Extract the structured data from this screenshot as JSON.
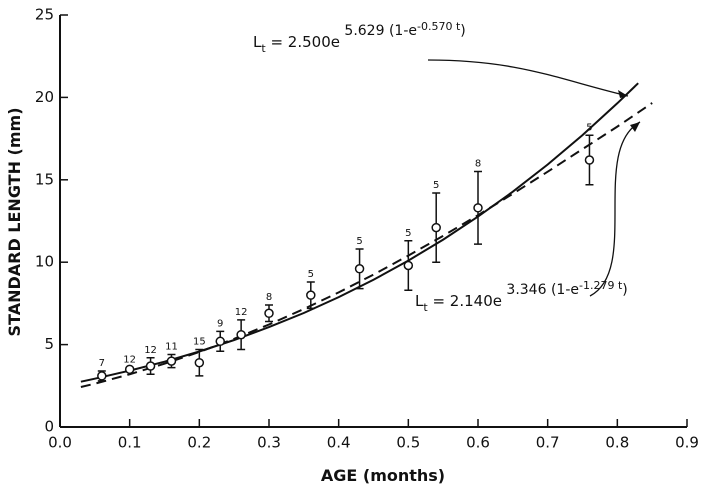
{
  "chart_data": {
    "type": "scatter",
    "x_label": "AGE (months)",
    "y_label": "STANDARD LENGTH (mm)",
    "xlim": [
      0,
      0.9
    ],
    "ylim": [
      0,
      25
    ],
    "xticks": [
      {
        "value": 0,
        "label": "0.0"
      },
      0.1,
      0.2,
      0.3,
      0.4,
      0.5,
      0.6,
      0.7,
      0.8,
      0.9
    ],
    "yticks": [
      0,
      5,
      10,
      15,
      20,
      25
    ],
    "points": {
      "color": "#111",
      "x": [
        0.06,
        0.1,
        0.13,
        0.16,
        0.2,
        0.23,
        0.26,
        0.3,
        0.36,
        0.43,
        0.5,
        0.54,
        0.6,
        0.76
      ],
      "values": [
        3.1,
        3.5,
        3.7,
        4.0,
        3.9,
        5.2,
        5.6,
        6.9,
        8.0,
        9.6,
        9.8,
        12.1,
        13.3,
        16.2
      ],
      "errors": [
        0.3,
        0.1,
        0.5,
        0.4,
        0.8,
        0.6,
        0.9,
        0.5,
        0.8,
        1.2,
        1.5,
        2.1,
        2.2,
        1.5
      ],
      "sample_sizes": [
        7,
        12,
        12,
        11,
        15,
        9,
        12,
        8,
        5,
        5,
        5,
        5,
        8,
        5
      ]
    },
    "series": [
      {
        "style": "solid",
        "color": "#111",
        "x": [
          0.03,
          0.05,
          0.1,
          0.15,
          0.2,
          0.25,
          0.3,
          0.35,
          0.4,
          0.45,
          0.5,
          0.55,
          0.6,
          0.65,
          0.7,
          0.75,
          0.8,
          0.83
        ],
        "values": [
          2.75,
          2.93,
          3.42,
          3.96,
          4.58,
          5.28,
          6.06,
          6.92,
          7.88,
          8.93,
          10.1,
          11.37,
          12.77,
          14.28,
          15.93,
          17.71,
          19.64,
          20.86
        ]
      },
      {
        "style": "dashed",
        "color": "#111",
        "x": [
          0.03,
          0.05,
          0.1,
          0.15,
          0.2,
          0.25,
          0.3,
          0.35,
          0.4,
          0.45,
          0.5,
          0.55,
          0.6,
          0.65,
          0.7,
          0.75,
          0.8,
          0.85
        ],
        "values": [
          2.43,
          2.63,
          3.2,
          3.84,
          4.55,
          5.35,
          6.22,
          7.16,
          8.17,
          9.25,
          10.4,
          11.6,
          12.85,
          14.15,
          15.49,
          16.86,
          18.23,
          19.66
        ]
      }
    ],
    "annotations": [
      {
        "base": "L",
        "sub": "t",
        "coef": " = 2.500e",
        "exp": " 5.629 (1-e",
        "exp2": "-0.570 t",
        "close": ")"
      },
      {
        "base": "L",
        "sub": "t",
        "coef": " = 2.140e",
        "exp": " 3.346 (1-e",
        "exp2": "-1.279 t",
        "close": ")"
      }
    ]
  }
}
